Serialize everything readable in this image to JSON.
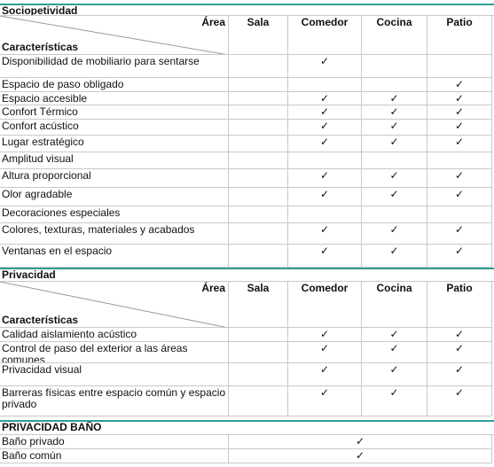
{
  "sections": [
    {
      "title": "Sociopetividad",
      "header": {
        "area": "Área",
        "characteristics": "Características",
        "columns": [
          "Sala",
          "Comedor",
          "Cocina",
          "Patio"
        ]
      },
      "rows": [
        [
          "Disponibilidad de mobiliario para sentarse",
          null,
          "✓",
          null,
          null
        ],
        [
          "Espacio de paso obligado",
          null,
          null,
          null,
          "✓"
        ],
        [
          "Espacio accesible",
          null,
          "✓",
          "✓",
          "✓"
        ],
        [
          "Confort Térmico",
          null,
          "✓",
          "✓",
          "✓"
        ],
        [
          "Confort acústico",
          null,
          "✓",
          "✓",
          "✓"
        ],
        [
          "Lugar estratégico",
          null,
          "✓",
          "✓",
          "✓"
        ],
        [
          "Amplitud visual",
          null,
          null,
          null,
          null
        ],
        [
          "Altura proporcional",
          null,
          "✓",
          "✓",
          "✓"
        ],
        [
          "Olor agradable",
          null,
          "✓",
          "✓",
          "✓"
        ],
        [
          "Decoraciones especiales",
          null,
          null,
          null,
          null
        ],
        [
          "Colores, texturas, materiales y acabados",
          null,
          "✓",
          "✓",
          "✓"
        ],
        [
          "Ventanas en el espacio",
          null,
          "✓",
          "✓",
          "✓"
        ]
      ]
    },
    {
      "title": "Privacidad",
      "header": {
        "area": "Área",
        "characteristics": "Características",
        "columns": [
          "Sala",
          "Comedor",
          "Cocina",
          "Patio"
        ]
      },
      "rows": [
        [
          "Calidad aislamiento acústico",
          null,
          "✓",
          "✓",
          "✓"
        ],
        [
          "Control de paso del exterior a las áreas comunes",
          null,
          "✓",
          "✓",
          "✓"
        ],
        [
          "Privacidad visual",
          null,
          "✓",
          "✓",
          "✓"
        ],
        [
          "Barreras físicas entre espacio común y espacio privado",
          null,
          "✓",
          "✓",
          "✓"
        ]
      ]
    }
  ],
  "bathroom": {
    "title": "PRIVACIDAD BAÑO",
    "rows": [
      [
        "Baño privado",
        "✓"
      ],
      [
        "Baño común",
        "✓"
      ]
    ]
  }
}
